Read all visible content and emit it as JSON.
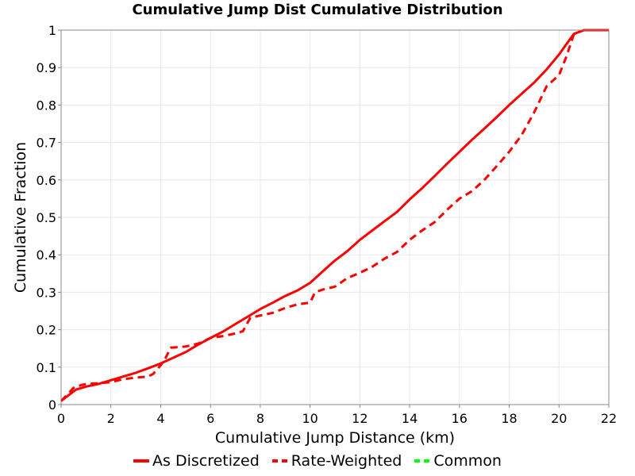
{
  "chart_data": {
    "type": "line",
    "title": "Cumulative Jump Dist Cumulative Distribution",
    "xlabel": "Cumulative Jump Distance (km)",
    "ylabel": "Cumulative Fraction",
    "xlim": [
      0,
      22
    ],
    "ylim": [
      0,
      1
    ],
    "x_ticks": [
      "0",
      "2",
      "4",
      "6",
      "8",
      "10",
      "12",
      "14",
      "16",
      "18",
      "20",
      "22"
    ],
    "y_ticks": [
      "0",
      "0.1",
      "0.2",
      "0.3",
      "0.4",
      "0.5",
      "0.6",
      "0.7",
      "0.8",
      "0.9",
      "1"
    ],
    "grid": true,
    "legend_position": "bottom",
    "series": [
      {
        "name": "As Discretized",
        "color": "#ff0000",
        "style": "solid",
        "x": [
          0,
          0.3,
          0.6,
          1,
          1.5,
          2,
          2.5,
          3,
          3.5,
          4,
          4.5,
          5,
          5.5,
          6,
          6.5,
          7,
          7.5,
          8,
          8.5,
          9,
          9.5,
          10,
          10.5,
          11,
          11.5,
          12,
          12.5,
          13,
          13.5,
          14,
          14.5,
          15,
          15.5,
          16,
          16.5,
          17,
          17.5,
          18,
          18.5,
          19,
          19.5,
          20,
          20.3,
          20.6,
          21,
          22
        ],
        "y": [
          0.01,
          0.025,
          0.04,
          0.048,
          0.055,
          0.065,
          0.075,
          0.085,
          0.097,
          0.11,
          0.125,
          0.14,
          0.16,
          0.178,
          0.195,
          0.215,
          0.235,
          0.255,
          0.272,
          0.29,
          0.305,
          0.325,
          0.355,
          0.385,
          0.41,
          0.44,
          0.465,
          0.49,
          0.515,
          0.548,
          0.578,
          0.61,
          0.643,
          0.675,
          0.707,
          0.737,
          0.768,
          0.8,
          0.83,
          0.86,
          0.895,
          0.935,
          0.963,
          0.99,
          1.0,
          1.0
        ]
      },
      {
        "name": "Rate-Weighted",
        "color": "#ff0000",
        "style": "dashed",
        "x": [
          0,
          0.3,
          0.5,
          0.8,
          1,
          1.5,
          2,
          2.5,
          3,
          3.5,
          3.7,
          4,
          4.2,
          4.4,
          5,
          5.5,
          6,
          6.5,
          7,
          7.3,
          7.6,
          8,
          8.5,
          9,
          9.5,
          10,
          10.2,
          10.5,
          11,
          11.5,
          12,
          12.5,
          13,
          13.5,
          14,
          14.5,
          15,
          15.5,
          16,
          16.5,
          17,
          17.5,
          18,
          18.5,
          19,
          19.5,
          20,
          20.3,
          20.6,
          21,
          22
        ],
        "y": [
          0.01,
          0.03,
          0.045,
          0.052,
          0.055,
          0.057,
          0.06,
          0.068,
          0.072,
          0.075,
          0.082,
          0.105,
          0.125,
          0.152,
          0.155,
          0.163,
          0.178,
          0.183,
          0.19,
          0.196,
          0.232,
          0.238,
          0.245,
          0.258,
          0.268,
          0.272,
          0.3,
          0.307,
          0.315,
          0.338,
          0.352,
          0.368,
          0.39,
          0.408,
          0.44,
          0.465,
          0.487,
          0.52,
          0.55,
          0.57,
          0.6,
          0.637,
          0.675,
          0.72,
          0.78,
          0.85,
          0.88,
          0.93,
          0.99,
          1.0,
          1.0
        ]
      },
      {
        "name": "Common",
        "color": "#00ff00",
        "style": "dashed",
        "x": [],
        "y": []
      }
    ]
  }
}
